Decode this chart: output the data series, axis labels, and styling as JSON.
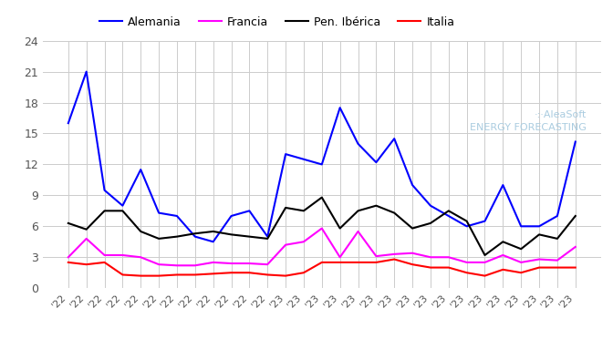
{
  "series": {
    "Alemania": {
      "color": "#0000ff",
      "values": [
        16.0,
        21.0,
        9.5,
        8.0,
        11.5,
        7.3,
        7.0,
        5.0,
        4.5,
        7.0,
        7.5,
        5.0,
        13.0,
        12.5,
        12.0,
        17.5,
        14.0,
        12.2,
        14.5,
        10.0,
        8.0,
        7.0,
        6.0,
        6.5,
        10.0,
        6.0,
        6.0,
        7.0,
        14.2
      ]
    },
    "Francia": {
      "color": "#ff00ff",
      "values": [
        3.0,
        4.8,
        3.2,
        3.2,
        3.0,
        2.3,
        2.2,
        2.2,
        2.5,
        2.4,
        2.4,
        2.3,
        4.2,
        4.5,
        5.8,
        3.0,
        5.5,
        3.1,
        3.3,
        3.4,
        3.0,
        3.0,
        2.5,
        2.5,
        3.2,
        2.5,
        2.8,
        2.7,
        4.0
      ]
    },
    "Pen. Ibérica": {
      "color": "#000000",
      "values": [
        6.3,
        5.7,
        7.5,
        7.5,
        5.5,
        4.8,
        5.0,
        5.3,
        5.5,
        5.2,
        5.0,
        4.8,
        7.8,
        7.5,
        8.8,
        5.8,
        7.5,
        8.0,
        7.3,
        5.8,
        6.3,
        7.5,
        6.5,
        3.2,
        4.5,
        3.8,
        5.2,
        4.8,
        7.0
      ]
    },
    "Italia": {
      "color": "#ff0000",
      "values": [
        2.5,
        2.3,
        2.5,
        1.3,
        1.2,
        1.2,
        1.3,
        1.3,
        1.4,
        1.5,
        1.5,
        1.3,
        1.2,
        1.5,
        2.5,
        2.5,
        2.5,
        2.5,
        2.8,
        2.3,
        2.0,
        2.0,
        1.5,
        1.2,
        1.8,
        1.5,
        2.0,
        2.0,
        2.0
      ]
    }
  },
  "x_labels": [
    "'22",
    "'22",
    "'22",
    "'22",
    "'22",
    "'22",
    "'22",
    "'22",
    "'22",
    "'22",
    "'22",
    "'22",
    "'23",
    "'23",
    "'23",
    "'23",
    "'23",
    "'23",
    "'23",
    "'23",
    "'23",
    "'23",
    "'23",
    "'23",
    "'23",
    "'23",
    "'23",
    "'23",
    "'23"
  ],
  "ylim": [
    0,
    24
  ],
  "yticks": [
    0,
    3,
    6,
    9,
    12,
    15,
    18,
    21,
    24
  ],
  "grid_color": "#cccccc",
  "bg_color": "#ffffff",
  "watermark_line1": "·:·AleaSoft",
  "watermark_line2": "ENERGY FORECASTING",
  "watermark_color": "#aacce0",
  "legend_order": [
    "Alemania",
    "Francia",
    "Pen. Ibérica",
    "Italia"
  ]
}
